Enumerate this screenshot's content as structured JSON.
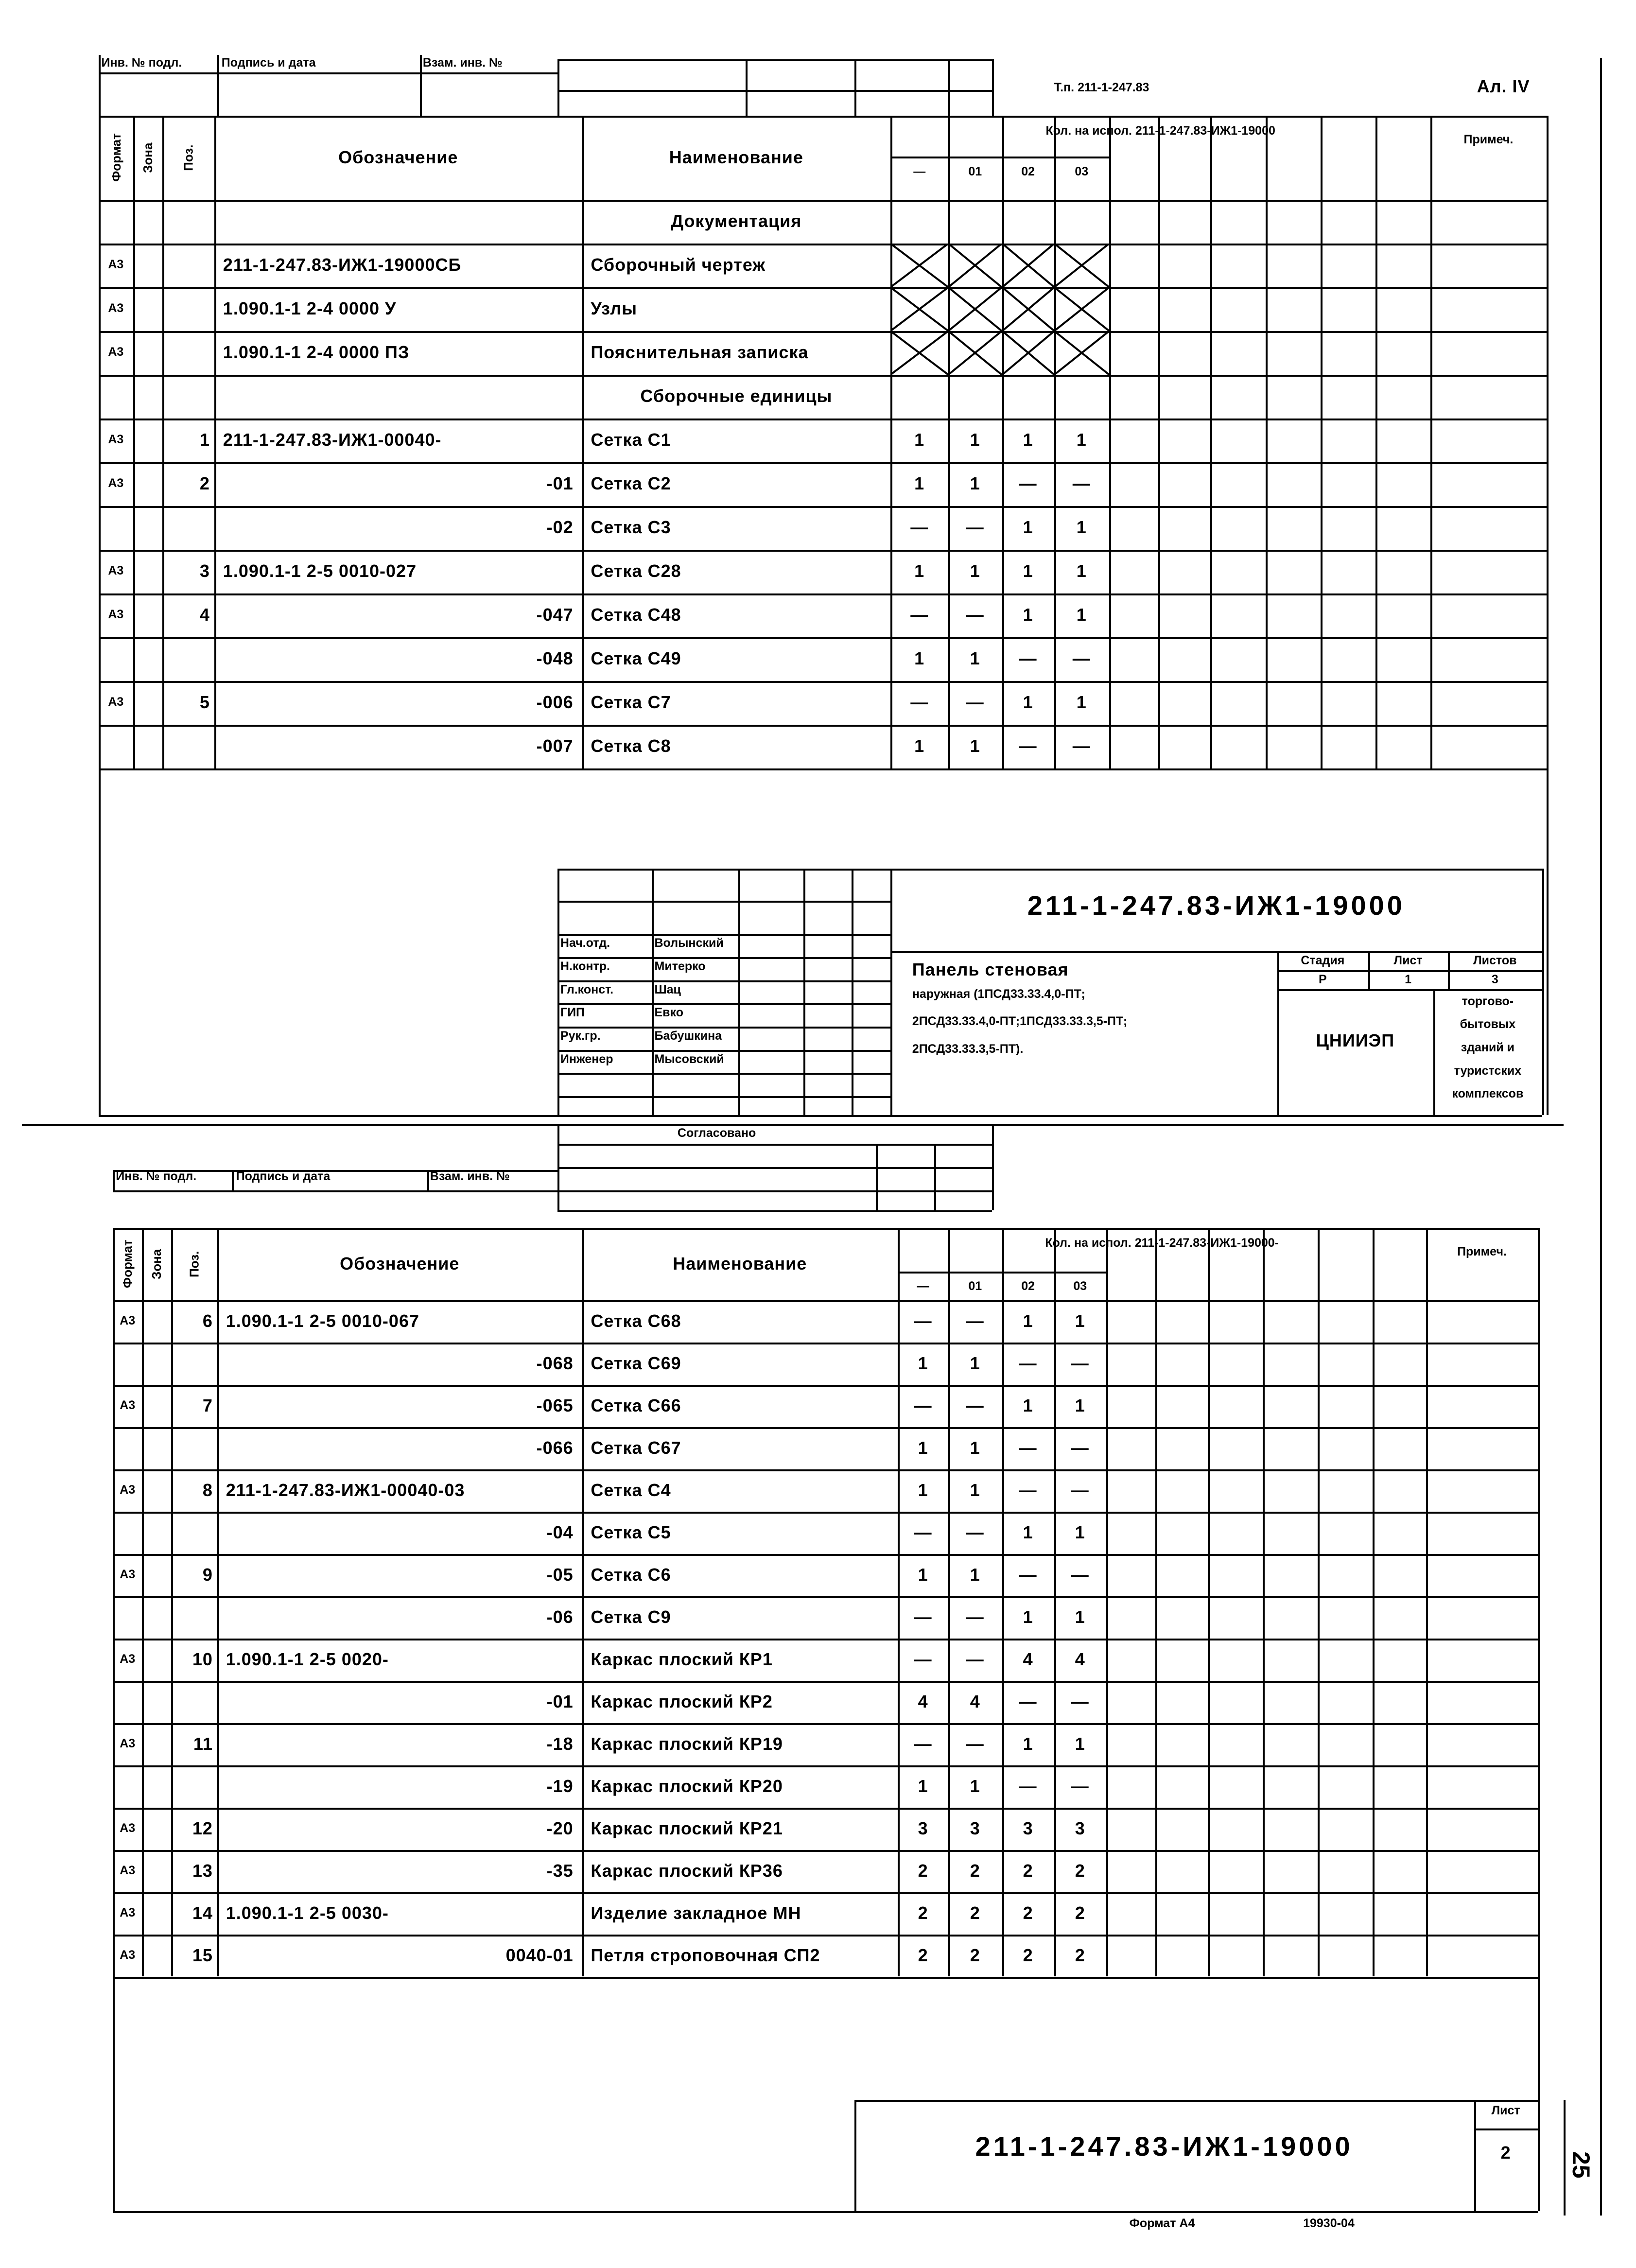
{
  "top_sheet": {
    "stamp_strip": [
      "Инв. № подл.",
      "Подпись и дата",
      "Взам. инв. №"
    ],
    "ref_code": "Т.п. 211-1-247.83",
    "album": "Ал. IV",
    "headers": {
      "format": "Формат",
      "zone": "Зона",
      "pos": "Поз.",
      "designation": "Обозначение",
      "name": "Наименование",
      "qty": "Кол. на испол. 211-1-247.83-ИЖ1-19000",
      "note": "Примеч.",
      "variants": [
        "—",
        "01",
        "02",
        "03"
      ]
    },
    "rows": [
      {
        "f": "",
        "z": "",
        "p": "",
        "d": "",
        "n": "Документация",
        "q": [
          "",
          "",
          "",
          ""
        ],
        "section": true
      },
      {
        "f": "А3",
        "z": "",
        "p": "",
        "d": "211-1-247.83-ИЖ1-19000СБ",
        "n": "Сборочный чертеж",
        "q": [
          "",
          "",
          "",
          ""
        ],
        "crossed": true
      },
      {
        "f": "А3",
        "z": "",
        "p": "",
        "d": "1.090.1-1 2-4 0000 У",
        "n": "Узлы",
        "q": [
          "",
          "",
          "",
          ""
        ],
        "crossed": true
      },
      {
        "f": "А3",
        "z": "",
        "p": "",
        "d": "1.090.1-1 2-4 0000 ПЗ",
        "n": "Пояснительная записка",
        "q": [
          "",
          "",
          "",
          ""
        ],
        "crossed": true
      },
      {
        "f": "",
        "z": "",
        "p": "",
        "d": "",
        "n": "Сборочные единицы",
        "q": [
          "",
          "",
          "",
          ""
        ],
        "section": true
      },
      {
        "f": "А3",
        "z": "",
        "p": "1",
        "d": "211-1-247.83-ИЖ1-00040-",
        "n": "Сетка С1",
        "q": [
          "1",
          "1",
          "1",
          "1"
        ]
      },
      {
        "f": "А3",
        "z": "",
        "p": "2",
        "d": "-01",
        "n": "Сетка С2",
        "q": [
          "1",
          "1",
          "—",
          "—"
        ]
      },
      {
        "f": "",
        "z": "",
        "p": "",
        "d": "-02",
        "n": "Сетка С3",
        "q": [
          "—",
          "—",
          "1",
          "1"
        ]
      },
      {
        "f": "А3",
        "z": "",
        "p": "3",
        "d": "1.090.1-1 2-5 0010-027",
        "n": "Сетка С28",
        "q": [
          "1",
          "1",
          "1",
          "1"
        ]
      },
      {
        "f": "А3",
        "z": "",
        "p": "4",
        "d": "-047",
        "n": "Сетка С48",
        "q": [
          "—",
          "—",
          "1",
          "1"
        ]
      },
      {
        "f": "",
        "z": "",
        "p": "",
        "d": "-048",
        "n": "Сетка С49",
        "q": [
          "1",
          "1",
          "—",
          "—"
        ]
      },
      {
        "f": "А3",
        "z": "",
        "p": "5",
        "d": "-006",
        "n": "Сетка С7",
        "q": [
          "—",
          "—",
          "1",
          "1"
        ]
      },
      {
        "f": "",
        "z": "",
        "p": "",
        "d": "-007",
        "n": "Сетка С8",
        "q": [
          "1",
          "1",
          "—",
          "—"
        ]
      }
    ],
    "title_block": {
      "code": "211-1-247.83-ИЖ1-19000",
      "people": [
        [
          "Нач.отд.",
          "Волынский"
        ],
        [
          "Н.контр.",
          "Митерко"
        ],
        [
          "Гл.конст.",
          "Шац"
        ],
        [
          "ГИП",
          "Евко"
        ],
        [
          "Рук.гр.",
          "Бабушкина"
        ],
        [
          "Инженер",
          "Мысовский"
        ]
      ],
      "title_lines": [
        "Панель стеновая",
        "наружная (1ПСД33.33.4,0-ПТ;",
        "2ПСД33.33.4,0-ПТ;1ПСД33.33.3,5-ПТ;",
        "2ПСД33.33.3,5-ПТ)."
      ],
      "stage_label": "Стадия",
      "sheet_label": "Лист",
      "sheets_label": "Листов",
      "stage": "Р",
      "sheet": "1",
      "sheets": "3",
      "org": "ЦНИИЭП",
      "org_desc": [
        "торгово-",
        "бытовых",
        "зданий и",
        "туристских",
        "комплексов"
      ]
    }
  },
  "bottom_sheet": {
    "agreed": "Согласовано",
    "stamp_strip": [
      "Инв. № подл.",
      "Подпись и дата",
      "Взам. инв. №"
    ],
    "headers": {
      "format": "Формат",
      "zone": "Зона",
      "pos": "Поз.",
      "designation": "Обозначение",
      "name": "Наименование",
      "qty": "Кол. на испол. 211-1-247.83-ИЖ1-19000-",
      "note": "Примеч.",
      "variants": [
        "—",
        "01",
        "02",
        "03"
      ]
    },
    "rows": [
      {
        "f": "А3",
        "z": "",
        "p": "6",
        "d": "1.090.1-1 2-5 0010-067",
        "n": "Сетка С68",
        "q": [
          "—",
          "—",
          "1",
          "1"
        ]
      },
      {
        "f": "",
        "z": "",
        "p": "",
        "d": "-068",
        "n": "Сетка С69",
        "q": [
          "1",
          "1",
          "—",
          "—"
        ]
      },
      {
        "f": "А3",
        "z": "",
        "p": "7",
        "d": "-065",
        "n": "Сетка С66",
        "q": [
          "—",
          "—",
          "1",
          "1"
        ]
      },
      {
        "f": "",
        "z": "",
        "p": "",
        "d": "-066",
        "n": "Сетка С67",
        "q": [
          "1",
          "1",
          "—",
          "—"
        ]
      },
      {
        "f": "А3",
        "z": "",
        "p": "8",
        "d": "211-1-247.83-ИЖ1-00040-03",
        "n": "Сетка С4",
        "q": [
          "1",
          "1",
          "—",
          "—"
        ]
      },
      {
        "f": "",
        "z": "",
        "p": "",
        "d": "-04",
        "n": "Сетка С5",
        "q": [
          "—",
          "—",
          "1",
          "1"
        ]
      },
      {
        "f": "А3",
        "z": "",
        "p": "9",
        "d": "-05",
        "n": "Сетка С6",
        "q": [
          "1",
          "1",
          "—",
          "—"
        ]
      },
      {
        "f": "",
        "z": "",
        "p": "",
        "d": "-06",
        "n": "Сетка С9",
        "q": [
          "—",
          "—",
          "1",
          "1"
        ]
      },
      {
        "f": "А3",
        "z": "",
        "p": "10",
        "d": "1.090.1-1 2-5 0020-",
        "n": "Каркас плоский КР1",
        "q": [
          "—",
          "—",
          "4",
          "4"
        ]
      },
      {
        "f": "",
        "z": "",
        "p": "",
        "d": "-01",
        "n": "Каркас плоский КР2",
        "q": [
          "4",
          "4",
          "—",
          "—"
        ]
      },
      {
        "f": "А3",
        "z": "",
        "p": "11",
        "d": "-18",
        "n": "Каркас плоский КР19",
        "q": [
          "—",
          "—",
          "1",
          "1"
        ]
      },
      {
        "f": "",
        "z": "",
        "p": "",
        "d": "-19",
        "n": "Каркас плоский КР20",
        "q": [
          "1",
          "1",
          "—",
          "—"
        ]
      },
      {
        "f": "А3",
        "z": "",
        "p": "12",
        "d": "-20",
        "n": "Каркас плоский КР21",
        "q": [
          "3",
          "3",
          "3",
          "3"
        ]
      },
      {
        "f": "А3",
        "z": "",
        "p": "13",
        "d": "-35",
        "n": "Каркас плоский КР36",
        "q": [
          "2",
          "2",
          "2",
          "2"
        ]
      },
      {
        "f": "А3",
        "z": "",
        "p": "14",
        "d": "1.090.1-1 2-5 0030-",
        "n": "Изделие закладное МН",
        "q": [
          "2",
          "2",
          "2",
          "2"
        ]
      },
      {
        "f": "А3",
        "z": "",
        "p": "15",
        "d": "0040-01",
        "n": "Петля строповочная СП2",
        "q": [
          "2",
          "2",
          "2",
          "2"
        ]
      }
    ],
    "title_block": {
      "code": "211-1-247.83-ИЖ1-19000",
      "sheet_label": "Лист",
      "sheet": "2"
    },
    "format_label": "Формат А4",
    "inv_no": "19930-04",
    "page_number": "25"
  }
}
